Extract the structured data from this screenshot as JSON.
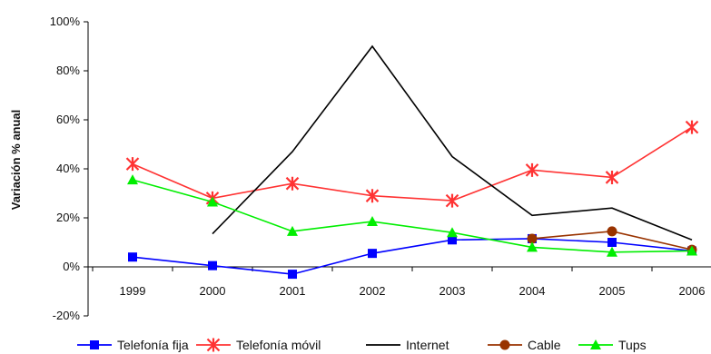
{
  "chart_data": {
    "type": "line",
    "title": "",
    "xlabel": "",
    "ylabel": "Variación % anual",
    "x": [
      "1999",
      "2000",
      "2001",
      "2002",
      "2003",
      "2004",
      "2005",
      "2006"
    ],
    "y_ticks": [
      "100%",
      "80%",
      "60%",
      "40%",
      "20%",
      "0%",
      "-20%"
    ],
    "ylim": [
      -20,
      100
    ],
    "grid": false,
    "legend_position": "bottom",
    "series": [
      {
        "name": "Telefonía fija",
        "color": "#0000ff",
        "marker": "square",
        "values": [
          4,
          0.5,
          -3,
          5.5,
          11,
          11.5,
          10,
          6.5
        ]
      },
      {
        "name": "Telefonía móvil",
        "color": "#ff3333",
        "marker": "star",
        "values": [
          42,
          28,
          34,
          29,
          27,
          39.5,
          36.5,
          57
        ]
      },
      {
        "name": "Internet",
        "color": "#000000",
        "marker": "none",
        "values": [
          null,
          13.5,
          47,
          90,
          45,
          21,
          24,
          11
        ]
      },
      {
        "name": "Cable",
        "color": "#993300",
        "marker": "circle",
        "values": [
          null,
          null,
          null,
          null,
          null,
          11.5,
          14.5,
          7
        ]
      },
      {
        "name": "Tups",
        "color": "#00ee00",
        "marker": "triangle",
        "values": [
          35.5,
          26.5,
          14.5,
          18.5,
          14,
          8,
          6,
          6.5
        ]
      }
    ]
  }
}
